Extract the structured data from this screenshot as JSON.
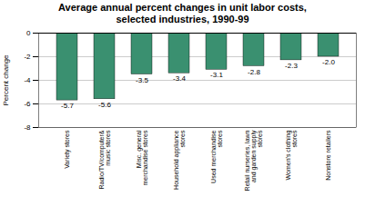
{
  "chart_data": {
    "type": "bar",
    "title": "Average annual percent changes in unit labor costs,\nselected industries, 1990-99",
    "categories": [
      "Variety stores",
      "Radio/TV/computer&\nmusic stores",
      "Misc. general\nmerchandise stores",
      "Household appliance\nstores",
      "Used merchandise\nstores",
      "Retail nurseries, lawn\nand garden supply\nstores",
      "Women's clothing\nstores",
      "Nonstore retailers"
    ],
    "values": [
      -5.7,
      -5.6,
      -3.5,
      -3.4,
      -3.1,
      -2.8,
      -2.3,
      -2.0
    ],
    "value_labels": [
      "-5.7",
      "-5.6",
      "-3.5",
      "-3.4",
      "-3.1",
      "-2.8",
      "-2.3",
      "-2.0"
    ],
    "color": "#3a9070",
    "ylabel": "Percent change",
    "ylim": [
      -8,
      0
    ],
    "yticks": [
      0,
      -2,
      -4,
      -6,
      -8
    ],
    "grid": true,
    "data_labels": true
  }
}
